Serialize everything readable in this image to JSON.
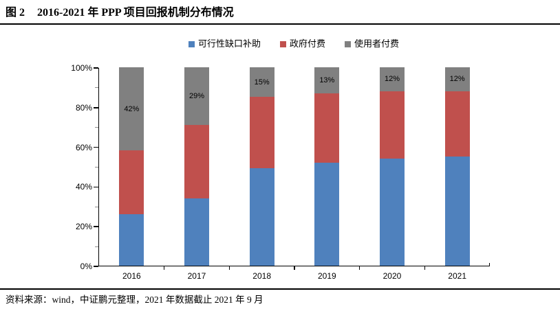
{
  "title": {
    "figure_label": "图 2",
    "text": "2016-2021 年 PPP 项目回报机制分布情况"
  },
  "footer": {
    "source": "资料来源：wind，中证鹏元整理，2021 年数据截止 2021 年 9 月"
  },
  "chart_data": {
    "type": "bar",
    "stacked": true,
    "title": "2016-2021 年 PPP 项目回报机制分布情况",
    "categories": [
      "2016",
      "2017",
      "2018",
      "2019",
      "2020",
      "2021"
    ],
    "series": [
      {
        "name": "可行性缺口补助",
        "color": "#4F81BD",
        "values": [
          26,
          34,
          49,
          52,
          54,
          55
        ]
      },
      {
        "name": "政府付费",
        "color": "#C0504D",
        "values": [
          32,
          37,
          36,
          35,
          34,
          33
        ]
      },
      {
        "name": "使用者付费",
        "color": "#808080",
        "values": [
          42,
          29,
          15,
          13,
          12,
          12
        ],
        "data_labels": [
          "42%",
          "29%",
          "15%",
          "13%",
          "12%",
          "12%"
        ]
      }
    ],
    "xlabel": "",
    "ylabel": "",
    "ylim": [
      0,
      100
    ],
    "y_ticks": [
      "0%",
      "20%",
      "40%",
      "60%",
      "80%",
      "100%"
    ],
    "y_major_step": 20,
    "y_minor_step": 10,
    "grid": false,
    "legend_position": "top",
    "axis_color": "#000000"
  }
}
